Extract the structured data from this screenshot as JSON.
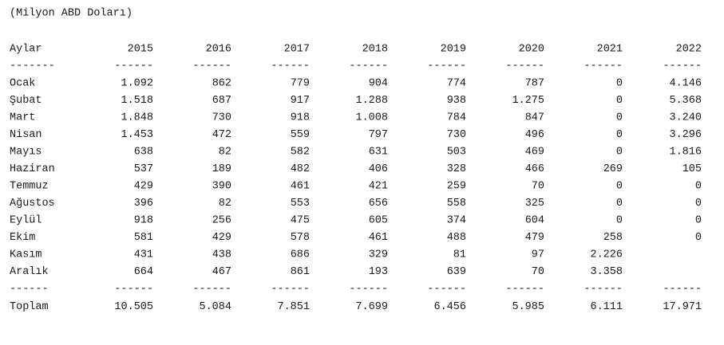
{
  "note": "(Milyon ABD Doları)",
  "table": {
    "header": [
      "Aylar",
      "2015",
      "2016",
      "2017",
      "2018",
      "2019",
      "2020",
      "2021",
      "2022"
    ],
    "separator_top": [
      "-------",
      "------",
      "------",
      "------",
      "------",
      "------",
      "------",
      "------",
      "------"
    ],
    "rows": [
      [
        "Ocak",
        "1.092",
        "862",
        "779",
        "904",
        "774",
        "787",
        "0",
        "4.146"
      ],
      [
        "Şubat",
        "1.518",
        "687",
        "917",
        "1.288",
        "938",
        "1.275",
        "0",
        "5.368"
      ],
      [
        "Mart",
        "1.848",
        "730",
        "918",
        "1.008",
        "784",
        "847",
        "0",
        "3.240"
      ],
      [
        "Nisan",
        "1.453",
        "472",
        "559",
        "797",
        "730",
        "496",
        "0",
        "3.296"
      ],
      [
        "Mayıs",
        "638",
        "82",
        "582",
        "631",
        "503",
        "469",
        "0",
        "1.816"
      ],
      [
        "Haziran",
        "537",
        "189",
        "482",
        "406",
        "328",
        "466",
        "269",
        "105"
      ],
      [
        "Temmuz",
        "429",
        "390",
        "461",
        "421",
        "259",
        "70",
        "0",
        "0"
      ],
      [
        "Ağustos",
        "396",
        "82",
        "553",
        "656",
        "558",
        "325",
        "0",
        "0"
      ],
      [
        "Eylül",
        "918",
        "256",
        "475",
        "605",
        "374",
        "604",
        "0",
        "0"
      ],
      [
        "Ekim",
        "581",
        "429",
        "578",
        "461",
        "488",
        "479",
        "258",
        "0"
      ],
      [
        "Kasım",
        "431",
        "438",
        "686",
        "329",
        "81",
        "97",
        "2.226",
        null
      ],
      [
        "Aralık",
        "664",
        "467",
        "861",
        "193",
        "639",
        "70",
        "3.358",
        null
      ]
    ],
    "separator_bottom": [
      "------",
      "------",
      "------",
      "------",
      "------",
      "------",
      "------",
      "------",
      "------"
    ],
    "total": [
      "Toplam",
      "10.505",
      "5.084",
      "7.851",
      "7.699",
      "6.456",
      "5.985",
      "6.111",
      "17.971"
    ]
  }
}
